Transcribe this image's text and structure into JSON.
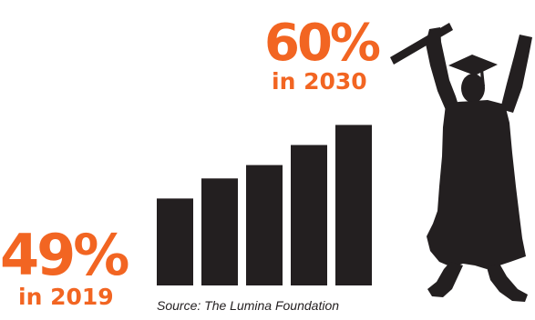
{
  "colors": {
    "accent": "#f26522",
    "ink": "#231f20",
    "background": "#ffffff"
  },
  "headline_end": {
    "value": "60%",
    "label": "in 2030"
  },
  "headline_start": {
    "value": "49%",
    "label": "in 2019"
  },
  "source": "Source: The Lumina Foundation",
  "illustration": {
    "icon": "graduate-silhouette-icon"
  },
  "chart_data": {
    "type": "bar",
    "title": "",
    "xlabel": "",
    "ylabel": "",
    "grid": false,
    "legend": "none",
    "categories": [
      "",
      "",
      "",
      "",
      ""
    ],
    "values": [
      49,
      52,
      54,
      57,
      60
    ],
    "ylim": [
      36,
      64
    ],
    "annotations": [
      {
        "text": "49%",
        "sub": "in 2019",
        "position": "left of first bar"
      },
      {
        "text": "60%",
        "sub": "in 2030",
        "position": "above last bar"
      }
    ]
  }
}
